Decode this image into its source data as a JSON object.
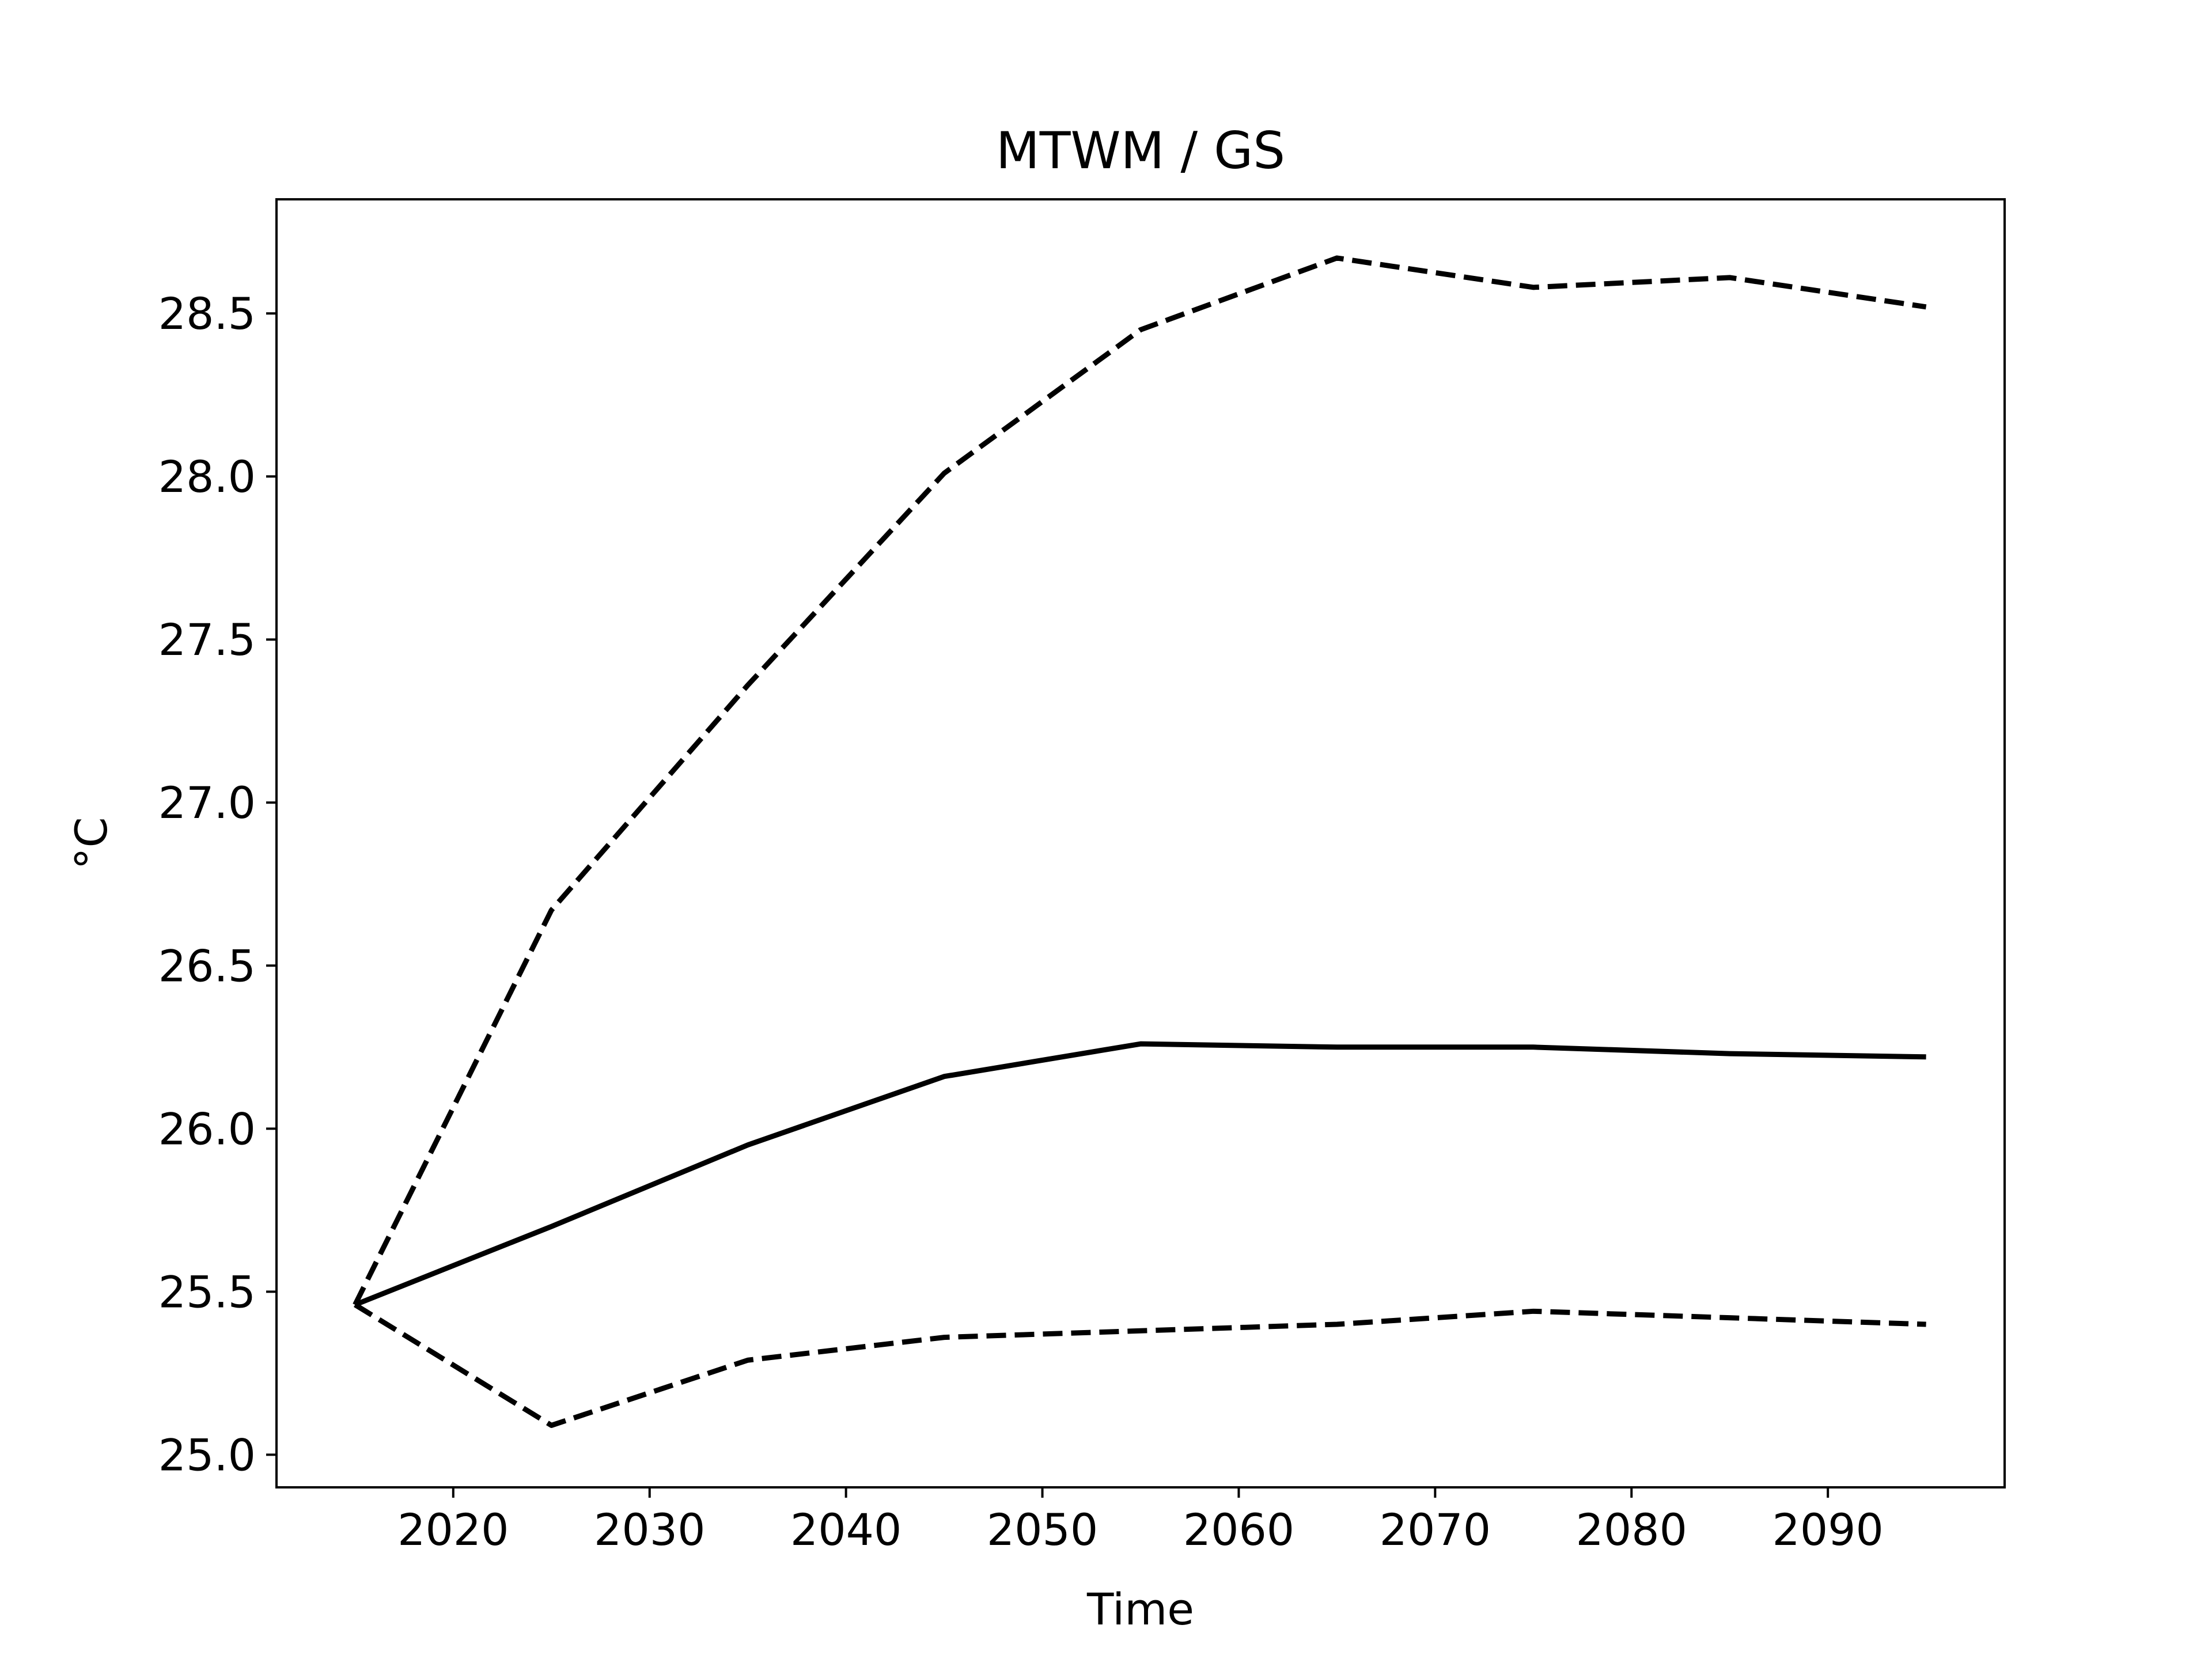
{
  "chart_data": {
    "type": "line",
    "title": "MTWM / GS",
    "xlabel": "Time",
    "ylabel": "°C",
    "xlim": [
      2011,
      2099
    ],
    "ylim": [
      24.9,
      28.85
    ],
    "grid": false,
    "x_ticks": [
      2020,
      2030,
      2040,
      2050,
      2060,
      2070,
      2080,
      2090
    ],
    "x_tick_labels": [
      "2020",
      "2030",
      "2040",
      "2050",
      "2060",
      "2070",
      "2080",
      "2090"
    ],
    "y_ticks": [
      25.0,
      25.5,
      26.0,
      26.5,
      27.0,
      27.5,
      28.0,
      28.5
    ],
    "y_tick_labels": [
      "25.0",
      "25.5",
      "26.0",
      "26.5",
      "27.0",
      "27.5",
      "28.0",
      "28.5"
    ],
    "x": [
      2015,
      2025,
      2035,
      2045,
      2055,
      2065,
      2075,
      2085,
      2095
    ],
    "series": [
      {
        "style": "solid",
        "color": "#000000",
        "values": [
          25.46,
          25.7,
          25.95,
          26.16,
          26.26,
          26.25,
          26.25,
          26.23,
          26.22
        ]
      },
      {
        "style": "dashed",
        "color": "#000000",
        "values": [
          25.46,
          26.67,
          27.36,
          28.01,
          28.45,
          28.67,
          28.58,
          28.61,
          28.52
        ]
      },
      {
        "style": "dashed",
        "color": "#000000",
        "values": [
          25.46,
          25.09,
          25.29,
          25.36,
          25.38,
          25.4,
          25.44,
          25.42,
          25.4
        ]
      }
    ]
  }
}
